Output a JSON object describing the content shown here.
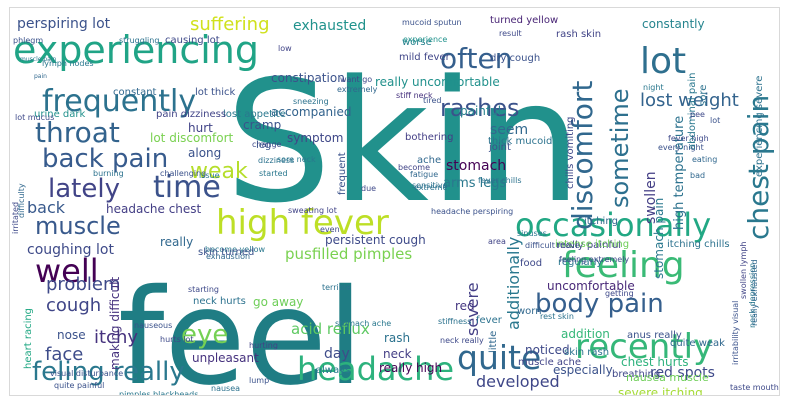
{
  "words": [
    {
      "text": "Skin",
      "color": "#21918c"
    },
    {
      "text": "feel",
      "color": "#1f7d84"
    },
    {
      "text": "experiencing",
      "color": "#20a486"
    },
    {
      "text": "high fever",
      "color": "#bddf26"
    },
    {
      "text": "occasionally",
      "color": "#22a884"
    },
    {
      "text": "feeling",
      "color": "#3aba76"
    },
    {
      "text": "recently",
      "color": "#35b779"
    },
    {
      "text": "headache",
      "color": "#2db27d"
    },
    {
      "text": "quite",
      "color": "#31688e"
    },
    {
      "text": "body pain",
      "color": "#355f8d"
    },
    {
      "text": "chest pain",
      "color": "#2a788e"
    },
    {
      "text": "discomfort",
      "color": "#31688e"
    },
    {
      "text": "frequently",
      "color": "#2c728e"
    },
    {
      "text": "throat",
      "color": "#33638d"
    },
    {
      "text": "lot",
      "color": "#2e6f8e"
    },
    {
      "text": "time",
      "color": "#3b528b"
    },
    {
      "text": "lately",
      "color": "#414487"
    },
    {
      "text": "back pain",
      "color": "#375b8d"
    },
    {
      "text": "well",
      "color": "#440154"
    },
    {
      "text": "feling really",
      "color": "#2a788e"
    },
    {
      "text": "muscle",
      "color": "#38598c"
    },
    {
      "text": "eye",
      "color": "#75d054"
    },
    {
      "text": "often",
      "color": "#355f8d"
    },
    {
      "text": "rashes",
      "color": "#3b528b"
    },
    {
      "text": "sometime",
      "color": "#2d708e"
    },
    {
      "text": "weak",
      "color": "#b5de2b"
    },
    {
      "text": "cough",
      "color": "#404688"
    },
    {
      "text": "face",
      "color": "#3e4c8a"
    },
    {
      "text": "itchy",
      "color": "#46327e"
    },
    {
      "text": "problem",
      "color": "#3e4989"
    },
    {
      "text": "severe",
      "color": "#433e85"
    },
    {
      "text": "developed",
      "color": "#3f4788"
    },
    {
      "text": "lost weight",
      "color": "#33638d"
    },
    {
      "text": "suffering",
      "color": "#d0e11c"
    },
    {
      "text": "exhausted",
      "color": "#20928c"
    },
    {
      "text": "perspiring lot",
      "color": "#3b528b"
    },
    {
      "text": "coughing lot",
      "color": "#3e4a89"
    },
    {
      "text": "pusfilled pimples",
      "color": "#7ad151"
    },
    {
      "text": "acid reflux",
      "color": "#5ec962"
    },
    {
      "text": "additionally",
      "color": "#2a788e"
    },
    {
      "text": "red spots",
      "color": "#3e4989"
    },
    {
      "text": "stomach",
      "color": "#440154"
    },
    {
      "text": "swollen",
      "color": "#433e85"
    },
    {
      "text": "high temperature",
      "color": "#2c728e"
    },
    {
      "text": "constantly",
      "color": "#25848e"
    },
    {
      "text": "constipation",
      "color": "#3b528b"
    },
    {
      "text": "really uncomfortable",
      "color": "#21918c"
    },
    {
      "text": "accompanied",
      "color": "#33638d"
    },
    {
      "text": "painful",
      "color": "#26828e"
    },
    {
      "text": "seem",
      "color": "#31688e"
    },
    {
      "text": "hurt",
      "color": "#414487"
    },
    {
      "text": "lot discomfort",
      "color": "#7ad151"
    },
    {
      "text": "symptom",
      "color": "#3f4788"
    },
    {
      "text": "along",
      "color": "#3b528b"
    },
    {
      "text": "back",
      "color": "#38598c"
    },
    {
      "text": "headache chest",
      "color": "#433e85"
    },
    {
      "text": "arms legs",
      "color": "#2a788e"
    },
    {
      "text": "really",
      "color": "#31688e"
    },
    {
      "text": "go away",
      "color": "#6ece58"
    },
    {
      "text": "rash",
      "color": "#2c728e"
    },
    {
      "text": "day",
      "color": "#3e4c8a"
    },
    {
      "text": "neck",
      "color": "#433e85"
    },
    {
      "text": "really high",
      "color": "#440154"
    },
    {
      "text": "unpleasant",
      "color": "#46327e"
    },
    {
      "text": "red",
      "color": "#453781"
    },
    {
      "text": "uncomfortable",
      "color": "#482878"
    },
    {
      "text": "noticed",
      "color": "#3e4989"
    },
    {
      "text": "addition",
      "color": "#35b779"
    },
    {
      "text": "especially",
      "color": "#3b528b"
    },
    {
      "text": "chest hurts",
      "color": "#2db27d"
    },
    {
      "text": "skin rash",
      "color": "#2c728e"
    },
    {
      "text": "breathing",
      "color": "#3f4788"
    },
    {
      "text": "nausea muscle",
      "color": "#6ece58"
    },
    {
      "text": "severe itching",
      "color": "#a5db36"
    },
    {
      "text": "persistent cough",
      "color": "#3e4a89"
    },
    {
      "text": "stomach pain",
      "color": "#2a788e"
    },
    {
      "text": "cramp",
      "color": "#3b528b"
    },
    {
      "text": "lost appetite",
      "color": "#2a788e"
    },
    {
      "text": "urine dark",
      "color": "#21918c"
    },
    {
      "text": "pain dizziness",
      "color": "#414487"
    },
    {
      "text": "lot thick",
      "color": "#3b528b"
    },
    {
      "text": "constant",
      "color": "#31688e"
    },
    {
      "text": "causing lot",
      "color": "#3e4989"
    },
    {
      "text": "struggling",
      "color": "#2c728e"
    },
    {
      "text": "turned yellow",
      "color": "#482475"
    },
    {
      "text": "mucoid sputun",
      "color": "#3b528b"
    },
    {
      "text": "rash skin",
      "color": "#414487"
    },
    {
      "text": "thick mucoid",
      "color": "#2c728e"
    },
    {
      "text": "dry cough",
      "color": "#3b528b"
    },
    {
      "text": "mild fever",
      "color": "#404688"
    },
    {
      "text": "worse",
      "color": "#26828e"
    },
    {
      "text": "result",
      "color": "#3e4989"
    },
    {
      "text": "stiff neck",
      "color": "#46327e"
    },
    {
      "text": "phlegm",
      "color": "#3b528b"
    },
    {
      "text": "lymph nodes",
      "color": "#2a788e"
    },
    {
      "text": "lot mucus",
      "color": "#3e4989"
    },
    {
      "text": "bothering",
      "color": "#433e85"
    },
    {
      "text": "joint",
      "color": "#3b528b"
    },
    {
      "text": "fever",
      "color": "#2c728e"
    },
    {
      "text": "food",
      "color": "#3e4989"
    },
    {
      "text": "regularly",
      "color": "#2a788e"
    },
    {
      "text": "really painful",
      "color": "#414487"
    },
    {
      "text": "intense itching",
      "color": "#6ece58"
    },
    {
      "text": "itching chills",
      "color": "#2c728e"
    },
    {
      "text": "anus really",
      "color": "#3b528b"
    },
    {
      "text": "quite weak",
      "color": "#31688e"
    },
    {
      "text": "nose",
      "color": "#3b528b"
    },
    {
      "text": "making difficult",
      "color": "#46327e"
    },
    {
      "text": "neck hurts",
      "color": "#2c728e"
    },
    {
      "text": "hurts lot",
      "color": "#3e4989"
    },
    {
      "text": "heart racing",
      "color": "#22a884"
    },
    {
      "text": "visual disturbance",
      "color": "#3b528b"
    },
    {
      "text": "always",
      "color": "#2a788e"
    },
    {
      "text": "muscle ache",
      "color": "#414487"
    },
    {
      "text": "itching",
      "color": "#31688e"
    },
    {
      "text": "sore",
      "color": "#2c728e"
    },
    {
      "text": "fever high",
      "color": "#3e4989"
    },
    {
      "text": "every night",
      "color": "#3b528b"
    },
    {
      "text": "abdominal pain",
      "color": "#2a788e"
    },
    {
      "text": "eating",
      "color": "#31688e"
    },
    {
      "text": "chills vomiting",
      "color": "#3e4989"
    },
    {
      "text": "fever chills",
      "color": "#2c728e"
    },
    {
      "text": "experience",
      "color": "#20928c"
    },
    {
      "text": "tired",
      "color": "#3b528b"
    },
    {
      "text": "sore neck",
      "color": "#2a788e"
    },
    {
      "text": "change",
      "color": "#3e4989"
    },
    {
      "text": "fatigue",
      "color": "#31688e"
    },
    {
      "text": "sensitive",
      "color": "#2c728e"
    },
    {
      "text": "become",
      "color": "#414487"
    },
    {
      "text": "frequent",
      "color": "#3b528b"
    },
    {
      "text": "started",
      "color": "#2a788e"
    },
    {
      "text": "due",
      "color": "#3e4989"
    },
    {
      "text": "ache",
      "color": "#31688e"
    },
    {
      "text": "headache perspiring",
      "color": "#3b528b"
    },
    {
      "text": "dizziness",
      "color": "#2c728e"
    },
    {
      "text": "sweating lot",
      "color": "#414487"
    },
    {
      "text": "even",
      "color": "#3e4989"
    },
    {
      "text": "become yellow",
      "color": "#2a788e"
    },
    {
      "text": "exhaustion",
      "color": "#31688e"
    },
    {
      "text": "skin turned",
      "color": "#3b528b"
    },
    {
      "text": "terrible",
      "color": "#2c728e"
    },
    {
      "text": "starting",
      "color": "#3e4989"
    },
    {
      "text": "hurting",
      "color": "#414487"
    },
    {
      "text": "stomach ache",
      "color": "#2a788e"
    },
    {
      "text": "nauseous",
      "color": "#3b528b"
    },
    {
      "text": "little",
      "color": "#31688e"
    },
    {
      "text": "stiffness",
      "color": "#2c728e"
    },
    {
      "text": "neck really",
      "color": "#3e4989"
    },
    {
      "text": "difficult move",
      "color": "#3b528b"
    },
    {
      "text": "sinuses",
      "color": "#2a788e"
    },
    {
      "text": "area",
      "color": "#414487"
    },
    {
      "text": "worn",
      "color": "#31688e"
    },
    {
      "text": "rest skin",
      "color": "#2c728e"
    },
    {
      "text": "getting",
      "color": "#3e4989"
    },
    {
      "text": "irritability visual",
      "color": "#3b528b"
    },
    {
      "text": "neck depression",
      "color": "#2a788e"
    },
    {
      "text": "really exhausted",
      "color": "#31688e"
    },
    {
      "text": "experiencing severe",
      "color": "#2c728e"
    },
    {
      "text": "taste mouth",
      "color": "#3e4989"
    },
    {
      "text": "quite painful",
      "color": "#3b528b"
    },
    {
      "text": "pimples blackheads",
      "color": "#2a788e"
    },
    {
      "text": "want go",
      "color": "#3e4989"
    },
    {
      "text": "extremely",
      "color": "#31688e"
    },
    {
      "text": "sneezing",
      "color": "#2c728e"
    },
    {
      "text": "leg",
      "color": "#3b528b"
    },
    {
      "text": "night",
      "color": "#2a788e"
    },
    {
      "text": "pee",
      "color": "#3e4989"
    },
    {
      "text": "bad",
      "color": "#31688e"
    },
    {
      "text": "low",
      "color": "#414487"
    },
    {
      "text": "burning",
      "color": "#2c728e"
    },
    {
      "text": "challenging",
      "color": "#3b528b"
    },
    {
      "text": "issue",
      "color": "#2a788e"
    },
    {
      "text": "difficulty",
      "color": "#31688e"
    },
    {
      "text": "irritated",
      "color": "#3e4989"
    },
    {
      "text": "nausea",
      "color": "#2c728e"
    },
    {
      "text": "lump",
      "color": "#3b528b"
    },
    {
      "text": "muscle pain",
      "color": "#2a788e"
    },
    {
      "text": "pain",
      "color": "#31688e"
    },
    {
      "text": "feeling extremely",
      "color": "#3e4989"
    },
    {
      "text": "swollen lymph",
      "color": "#414487"
    },
    {
      "text": "extreme",
      "color": "#2c728e"
    },
    {
      "text": "lot",
      "color": "#3b528b"
    }
  ]
}
